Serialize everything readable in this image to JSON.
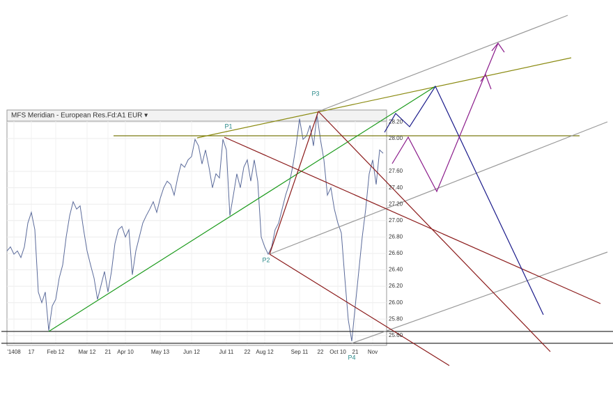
{
  "chart_data": {
    "type": "line",
    "title": "MFS Meridian - European Res.Fd:A1 EUR ▾",
    "annotations": [
      "P1",
      "P2",
      "P3",
      "P4"
    ],
    "categories": [
      null,
      null,
      "'1408",
      null,
      null,
      null,
      null,
      "17",
      null,
      null,
      null,
      null,
      null,
      null,
      "Feb 12",
      null,
      null,
      null,
      null,
      null,
      null,
      null,
      null,
      "Mar 12",
      null,
      null,
      null,
      null,
      null,
      "21",
      null,
      null,
      null,
      null,
      "Apr 10",
      null,
      null,
      null,
      null,
      null,
      null,
      null,
      null,
      null,
      "May 13",
      null,
      null,
      null,
      null,
      null,
      null,
      null,
      null,
      "Jun 12",
      null,
      null,
      null,
      null,
      null,
      null,
      null,
      null,
      null,
      "Jul 11",
      null,
      null,
      null,
      null,
      null,
      "22",
      null,
      null,
      null,
      null,
      "Aug 12",
      null,
      null,
      null,
      null,
      null,
      null,
      null,
      null,
      null,
      "Sep 11",
      null,
      null,
      null,
      null,
      null,
      "22",
      null,
      null,
      null,
      null,
      "Oct 10",
      null,
      null,
      null,
      null,
      "21",
      null,
      null,
      null,
      null,
      "Nov",
      null,
      null,
      null
    ],
    "series": [
      {
        "color": "#5a6a9a",
        "values": [
          26.63,
          26.68,
          26.59,
          26.63,
          26.55,
          26.68,
          26.97,
          27.1,
          26.89,
          26.13,
          26.0,
          26.13,
          25.66,
          25.96,
          26.04,
          26.3,
          26.46,
          26.8,
          27.06,
          27.23,
          27.14,
          27.18,
          26.89,
          26.63,
          26.46,
          26.3,
          26.04,
          26.21,
          26.38,
          26.13,
          26.38,
          26.72,
          26.89,
          26.93,
          26.8,
          26.89,
          26.34,
          26.63,
          26.8,
          26.97,
          27.06,
          27.14,
          27.23,
          27.1,
          27.27,
          27.4,
          27.48,
          27.44,
          27.31,
          27.52,
          27.69,
          27.65,
          27.74,
          27.78,
          27.99,
          27.91,
          27.69,
          27.86,
          27.65,
          27.4,
          27.57,
          27.52,
          27.99,
          27.86,
          27.06,
          27.31,
          27.57,
          27.4,
          27.65,
          27.74,
          27.48,
          27.74,
          27.48,
          26.8,
          26.68,
          26.59,
          26.68,
          26.89,
          26.97,
          27.14,
          27.31,
          27.44,
          27.65,
          27.91,
          28.24,
          27.99,
          28.03,
          28.16,
          27.91,
          28.29,
          27.99,
          27.74,
          27.31,
          27.4,
          27.14,
          26.97,
          26.85,
          26.3,
          25.79,
          25.53,
          25.96,
          26.38,
          26.8,
          27.14,
          27.57,
          27.74,
          27.44,
          27.86,
          27.82
        ]
      }
    ],
    "ylim": [
      25.48,
      28.33
    ],
    "yticks": [
      {
        "value": 28.2,
        "label": "28.20"
      },
      {
        "value": 28,
        "label": "28.00"
      },
      {
        "value": 27.6,
        "label": "27.60"
      },
      {
        "value": 27.4,
        "label": "27.40"
      },
      {
        "value": 27.2,
        "label": "27.20"
      },
      {
        "value": 27,
        "label": "27.00"
      },
      {
        "value": 26.8,
        "label": "26.80"
      },
      {
        "value": 26.6,
        "label": "26.60"
      },
      {
        "value": 26.4,
        "label": "26.40"
      },
      {
        "value": 26.2,
        "label": "26.20"
      },
      {
        "value": 26,
        "label": "26.00"
      },
      {
        "value": 25.8,
        "label": "25.80"
      },
      {
        "value": 25.6,
        "label": "25.60"
      }
    ],
    "grid": true
  }
}
